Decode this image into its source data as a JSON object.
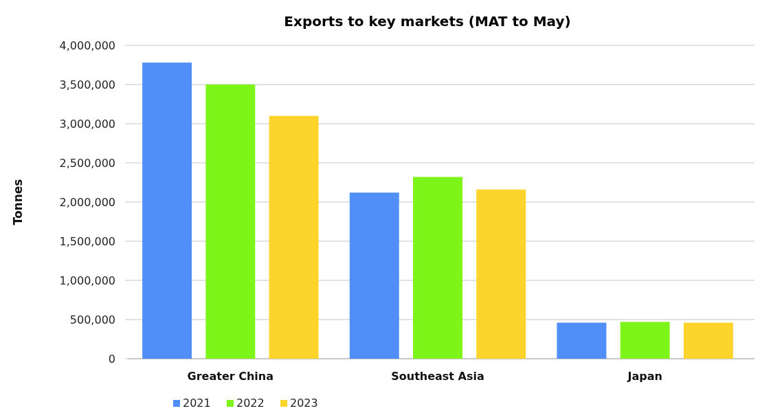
{
  "chart_data": {
    "type": "bar",
    "title": "Exports to key markets (MAT to May)",
    "ylabel": "Tonnes",
    "categories": [
      "Greater China",
      "Southeast Asia",
      "Japan"
    ],
    "series": [
      {
        "name": "2021",
        "color": "#4f8ff7",
        "values": [
          3780000,
          2120000,
          460000
        ]
      },
      {
        "name": "2022",
        "color": "#7ef518",
        "values": [
          3500000,
          2320000,
          470000
        ]
      },
      {
        "name": "2023",
        "color": "#fdd42c",
        "values": [
          3100000,
          2160000,
          460000
        ]
      }
    ],
    "ylim": [
      0,
      4000000
    ],
    "yticks": [
      {
        "value": 0,
        "label": "0"
      },
      {
        "value": 500000,
        "label": "500,000"
      },
      {
        "value": 1000000,
        "label": "1,000,000"
      },
      {
        "value": 1500000,
        "label": "1,500,000"
      },
      {
        "value": 2000000,
        "label": "2,000,000"
      },
      {
        "value": 2500000,
        "label": "2,500,000"
      },
      {
        "value": 3000000,
        "label": "3,000,000"
      },
      {
        "value": 3500000,
        "label": "3,500,000"
      },
      {
        "value": 4000000,
        "label": "4,000,000"
      }
    ],
    "grid": "y",
    "legend": "bottom left"
  }
}
